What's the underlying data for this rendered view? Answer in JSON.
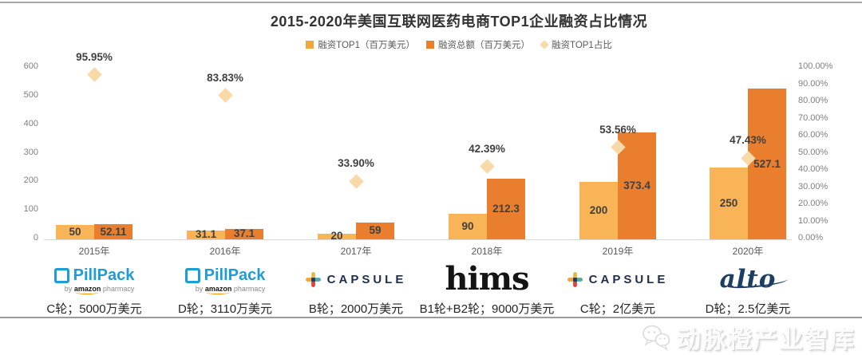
{
  "page": {
    "title": "2015-2020年美国互联网医药电商TOP1企业融资占比情况",
    "watermark_text": "动脉橙产业智库"
  },
  "legend": {
    "items": [
      {
        "label": "融资TOP1（百万美元）",
        "marker": "square",
        "color": "#f2a73e"
      },
      {
        "label": "融资总额（百万美元）",
        "marker": "square",
        "color": "#e8802e"
      },
      {
        "label": "融资TOP1占比",
        "marker": "diamond",
        "color": "#f9d9a8"
      }
    ]
  },
  "chart_data": {
    "type": "bar",
    "title": "2015-2020年美国互联网医药电商TOP1企业融资占比情况",
    "categories": [
      "2015年",
      "2016年",
      "2017年",
      "2018年",
      "2019年",
      "2020年"
    ],
    "series": [
      {
        "name": "融资TOP1（百万美元）",
        "type": "bar",
        "color": "#f9b458",
        "values": [
          50,
          31.1,
          20,
          90,
          200,
          250
        ],
        "labels": [
          "50",
          "31.1",
          "20",
          "90",
          "200",
          "250"
        ]
      },
      {
        "name": "融资总额（百万美元）",
        "type": "bar",
        "color": "#e97f2e",
        "values": [
          52.11,
          37.1,
          59,
          212.3,
          373.4,
          527.1
        ],
        "labels": [
          "52.11",
          "37.1",
          "59",
          "212.3",
          "373.4",
          "527.1"
        ]
      },
      {
        "name": "融资TOP1占比",
        "type": "scatter",
        "marker": "diamond",
        "axis": "right",
        "color": "#f9d9a8",
        "values": [
          95.95,
          83.83,
          33.9,
          42.39,
          53.56,
          47.43
        ],
        "labels": [
          "95.95%",
          "83.83%",
          "33.90%",
          "42.39%",
          "53.56%",
          "47.43%"
        ]
      }
    ],
    "left_axis": {
      "min": 0,
      "max": 600,
      "ticks": [
        "0",
        "100",
        "200",
        "300",
        "400",
        "500",
        "600"
      ]
    },
    "right_axis": {
      "min": 0,
      "max": 100,
      "ticks": [
        "0.00%",
        "10.00%",
        "20.00%",
        "30.00%",
        "40.00%",
        "50.00%",
        "60.00%",
        "70.00%",
        "80.00%",
        "90.00%",
        "100.00%"
      ]
    },
    "grid": false,
    "legend_position": "top"
  },
  "companies": [
    {
      "logo": "pillpack",
      "logo_text": "PillPack",
      "logo_sub_by": "by ",
      "logo_sub_amazon": "amazon",
      "logo_sub_rest": " pharmacy",
      "round": "C轮；5000万美元"
    },
    {
      "logo": "pillpack",
      "logo_text": "PillPack",
      "logo_sub_by": "by ",
      "logo_sub_amazon": "amazon",
      "logo_sub_rest": " pharmacy",
      "round": "D轮；3110万美元"
    },
    {
      "logo": "capsule",
      "logo_text": "CAPSULE",
      "round": "B轮；2000万美元"
    },
    {
      "logo": "hims",
      "logo_text": "hims",
      "round": "B1轮+B2轮；9000万美元"
    },
    {
      "logo": "capsule",
      "logo_text": "CAPSULE",
      "round": "C轮；2亿美元"
    },
    {
      "logo": "alto",
      "logo_text": "alto",
      "round": "D轮；2.5亿美元"
    }
  ]
}
